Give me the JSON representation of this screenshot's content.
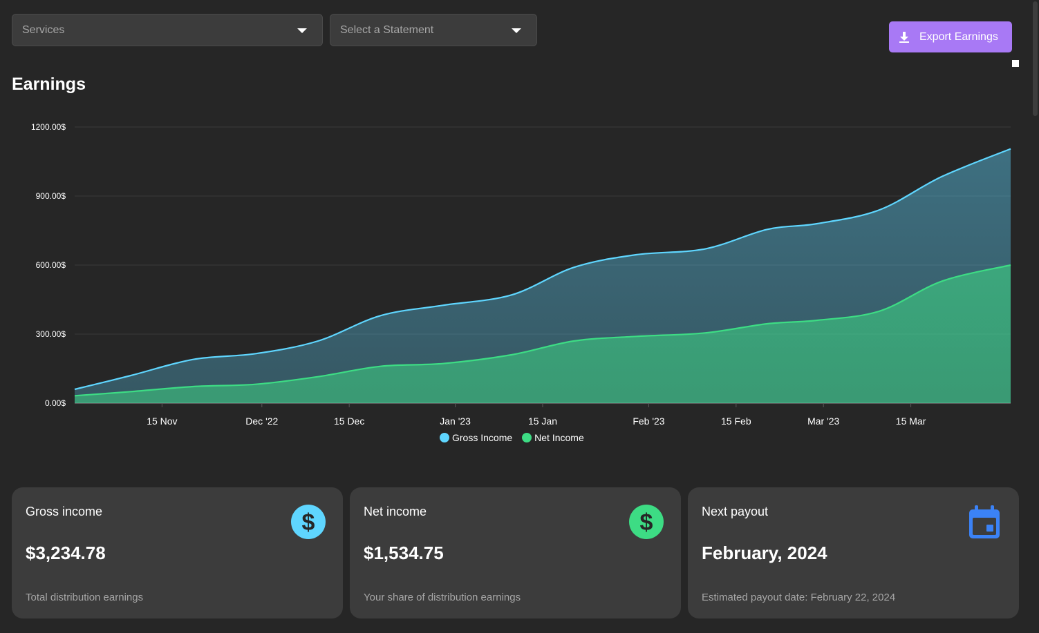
{
  "filters": {
    "services_placeholder": "Services",
    "statement_placeholder": "Select a Statement"
  },
  "toolbar": {
    "export_label": "Export Earnings"
  },
  "page": {
    "title": "Earnings"
  },
  "colors": {
    "gross": "#5fd6ff",
    "net": "#3ddc84",
    "accent": "#a879f5",
    "calendar": "#3b82f6"
  },
  "chart_data": {
    "type": "area",
    "title": "",
    "xlabel": "",
    "ylabel": "",
    "ylim": [
      0,
      1200
    ],
    "yticks": [
      "0.00$",
      "300.00$",
      "600.00$",
      "900.00$",
      "1200.00$"
    ],
    "xticks": [
      {
        "date": "2022-11-15",
        "label": "15 Nov"
      },
      {
        "date": "2022-12-01",
        "label": "Dec '22"
      },
      {
        "date": "2022-12-15",
        "label": "15 Dec"
      },
      {
        "date": "2023-01-01",
        "label": "Jan '23"
      },
      {
        "date": "2023-01-15",
        "label": "15 Jan"
      },
      {
        "date": "2023-02-01",
        "label": "Feb '23"
      },
      {
        "date": "2023-02-15",
        "label": "15 Feb"
      },
      {
        "date": "2023-03-01",
        "label": "Mar '23"
      },
      {
        "date": "2023-03-15",
        "label": "15 Mar"
      }
    ],
    "x": [
      "2022-11-01",
      "2022-11-10",
      "2022-11-20",
      "2022-11-30",
      "2022-12-10",
      "2022-12-20",
      "2022-12-30",
      "2023-01-10",
      "2023-01-20",
      "2023-01-30",
      "2023-02-10",
      "2023-02-20",
      "2023-02-28",
      "2023-03-10",
      "2023-03-20",
      "2023-03-31"
    ],
    "series": [
      {
        "name": "Gross Income",
        "values": [
          60,
          120,
          190,
          215,
          270,
          380,
          425,
          470,
          590,
          645,
          670,
          755,
          780,
          840,
          985,
          1105
        ]
      },
      {
        "name": "Net Income",
        "values": [
          32,
          50,
          72,
          82,
          115,
          160,
          172,
          210,
          270,
          290,
          305,
          345,
          360,
          400,
          530,
          600
        ]
      }
    ],
    "grid": true,
    "legend": "bottom"
  },
  "cards": [
    {
      "label": "Gross income",
      "value": "$3,234.78",
      "sub": "Total distribution earnings",
      "icon": "dollar-icon"
    },
    {
      "label": "Net income",
      "value": "$1,534.75",
      "sub": "Your share of distribution earnings",
      "icon": "dollar-icon"
    },
    {
      "label": "Next payout",
      "value": "February, 2024",
      "sub": "Estimated payout date: February 22, 2024",
      "icon": "calendar-icon"
    }
  ]
}
